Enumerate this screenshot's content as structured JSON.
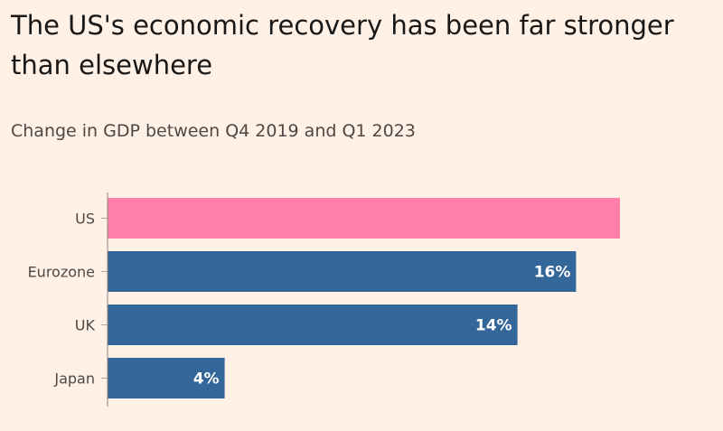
{
  "title": "The US's economic recovery has been far stronger than elsewhere",
  "subtitle": "Change in GDP between Q4 2019 and Q1 2023",
  "chart_data": {
    "type": "bar",
    "orientation": "horizontal",
    "title": "The US's economic recovery has been far stronger than elsewhere",
    "subtitle": "Change in GDP between Q4 2019 and Q1 2023",
    "categories": [
      "US",
      "Eurozone",
      "UK",
      "Japan"
    ],
    "values": [
      17.5,
      16,
      14,
      4
    ],
    "labels": [
      "",
      "16%",
      "14%",
      "4%"
    ],
    "colors": [
      "#ff7faa",
      "#336699",
      "#336699",
      "#336699"
    ],
    "xlim": [
      0,
      17.5
    ],
    "unit": "%"
  }
}
